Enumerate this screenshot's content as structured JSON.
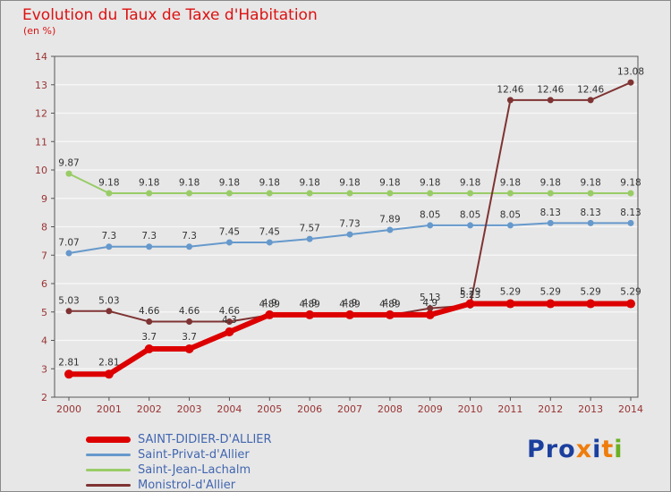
{
  "title": "Evolution du Taux de Taxe d'Habitation",
  "subtitle": "(en %)",
  "colors": {
    "bg": "#e7e7e7",
    "title": "#dd1111",
    "axis": "#993333",
    "point_label": "#333333",
    "grid": "#f8f8f8",
    "plot_border": "#555555",
    "legend_text": "#4266b0"
  },
  "chart_data": {
    "type": "line",
    "title": "Evolution du Taux de Taxe d'Habitation",
    "subtitle": "(en %)",
    "xlabel": "",
    "ylabel": "",
    "ylim": [
      2,
      14
    ],
    "yticks": [
      2,
      3,
      4,
      5,
      6,
      7,
      8,
      9,
      10,
      11,
      12,
      13,
      14
    ],
    "grid": true,
    "legend_position": "bottom-left",
    "categories": [
      "2000",
      "2001",
      "2002",
      "2003",
      "2004",
      "2005",
      "2006",
      "2007",
      "2008",
      "2009",
      "2010",
      "2011",
      "2012",
      "2013",
      "2014"
    ],
    "series": [
      {
        "name": "SAINT-DIDIER-D'ALLIER",
        "color": "#dd0000",
        "width": 6,
        "marker": 5,
        "values": [
          2.81,
          2.81,
          3.7,
          3.7,
          4.3,
          4.9,
          4.9,
          4.9,
          4.9,
          4.9,
          5.29,
          5.29,
          5.29,
          5.29,
          5.29
        ]
      },
      {
        "name": "Saint-Privat-d'Allier",
        "color": "#6699cc",
        "width": 2,
        "marker": 3.5,
        "values": [
          7.07,
          7.3,
          7.3,
          7.3,
          7.45,
          7.45,
          7.57,
          7.73,
          7.89,
          8.05,
          8.05,
          8.05,
          8.13,
          8.13,
          8.13
        ]
      },
      {
        "name": "Saint-Jean-Lachalm",
        "color": "#99cc66",
        "width": 2,
        "marker": 3.5,
        "values": [
          9.87,
          9.18,
          9.18,
          9.18,
          9.18,
          9.18,
          9.18,
          9.18,
          9.18,
          9.18,
          9.18,
          9.18,
          9.18,
          9.18,
          9.18
        ]
      },
      {
        "name": "Monistrol-d'Allier",
        "color": "#7f3333",
        "width": 2,
        "marker": 3.5,
        "values": [
          5.03,
          5.03,
          4.66,
          4.66,
          4.66,
          4.89,
          4.89,
          4.89,
          4.89,
          5.13,
          5.23,
          12.46,
          12.46,
          12.46,
          13.08
        ]
      }
    ]
  },
  "logo": {
    "letters": [
      {
        "ch": "P",
        "color": "#1b3f9e"
      },
      {
        "ch": "r",
        "color": "#1b3f9e"
      },
      {
        "ch": "o",
        "color": "#1b3f9e"
      },
      {
        "ch": "x",
        "color": "#ef7d0c"
      },
      {
        "ch": "i",
        "color": "#1b3f9e"
      },
      {
        "ch": "t",
        "color": "#ef7d0c"
      },
      {
        "ch": "i",
        "color": "#6ab024"
      }
    ]
  }
}
